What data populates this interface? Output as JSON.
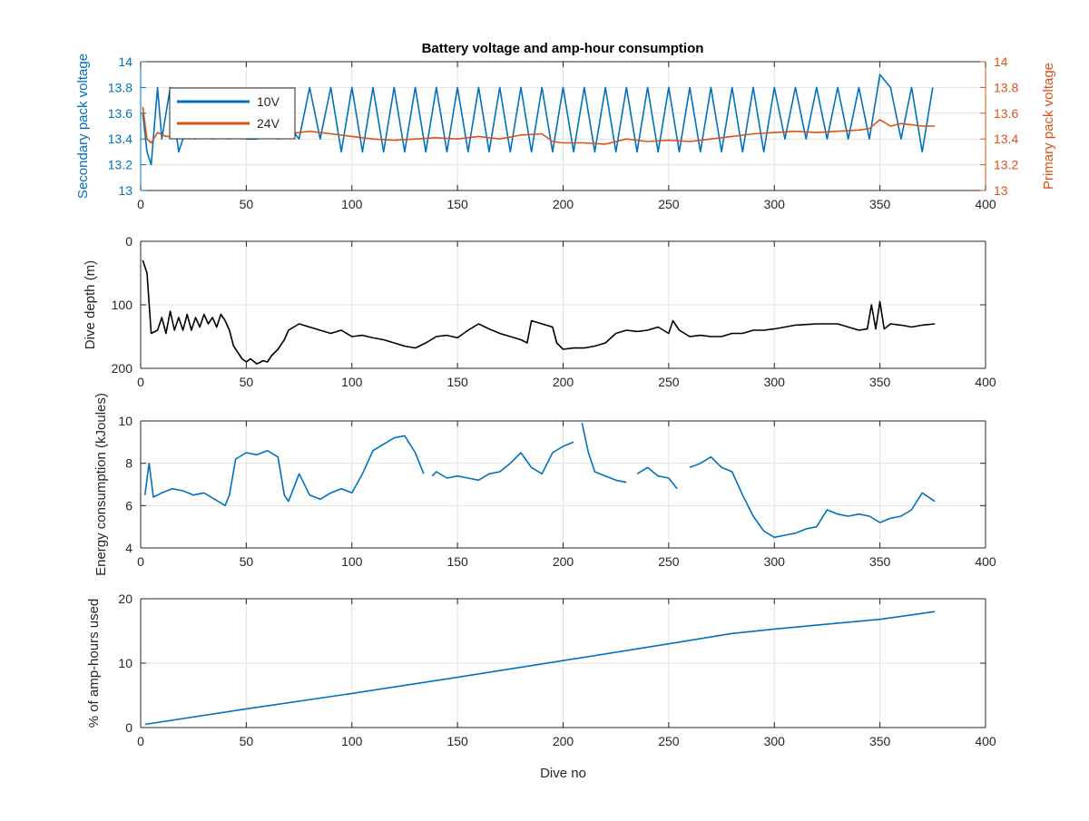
{
  "figure": {
    "title": "Battery voltage and amp-hour consumption"
  },
  "chart_data": [
    {
      "type": "line",
      "title": "Battery voltage and amp-hour consumption",
      "xlabel": "",
      "ylabel": "Secondary pack voltage",
      "ylabel_right": "Primary pack voltage",
      "xlim": [
        0,
        400
      ],
      "ylim": [
        13,
        14
      ],
      "ylim_right": [
        13,
        14
      ],
      "xticks": [
        "0",
        "50",
        "100",
        "150",
        "200",
        "250",
        "300",
        "350",
        "400"
      ],
      "yticks": [
        "13",
        "13.2",
        "13.4",
        "13.6",
        "13.8",
        "14"
      ],
      "yticks_right": [
        "13",
        "13.2",
        "13.4",
        "13.6",
        "13.8",
        "14"
      ],
      "grid": true,
      "legend": "top-left",
      "colors": {
        "left_axis": "#0072BD",
        "right_axis": "#D95319"
      },
      "series": [
        {
          "name": "10V",
          "color": "#0072BD",
          "axis": "left",
          "x": [
            1,
            3,
            5,
            8,
            10,
            14,
            18,
            22,
            26,
            30,
            34,
            38,
            42,
            46,
            50,
            55,
            60,
            65,
            70,
            75,
            80,
            85,
            90,
            95,
            100,
            105,
            110,
            115,
            120,
            125,
            130,
            135,
            140,
            145,
            150,
            155,
            160,
            165,
            170,
            175,
            180,
            185,
            190,
            195,
            200,
            205,
            210,
            215,
            220,
            225,
            230,
            235,
            240,
            245,
            250,
            255,
            260,
            265,
            270,
            275,
            280,
            285,
            290,
            295,
            300,
            305,
            310,
            315,
            320,
            325,
            330,
            335,
            340,
            345,
            350,
            355,
            360,
            365,
            370,
            375
          ],
          "y": [
            13.6,
            13.3,
            13.2,
            13.8,
            13.4,
            13.8,
            13.3,
            13.5,
            13.4,
            13.5,
            13.4,
            13.5,
            13.4,
            13.5,
            13.4,
            13.4,
            13.5,
            13.4,
            13.5,
            13.4,
            13.8,
            13.4,
            13.8,
            13.3,
            13.8,
            13.3,
            13.8,
            13.3,
            13.8,
            13.3,
            13.8,
            13.3,
            13.8,
            13.3,
            13.8,
            13.3,
            13.8,
            13.3,
            13.8,
            13.3,
            13.8,
            13.3,
            13.8,
            13.3,
            13.8,
            13.3,
            13.8,
            13.3,
            13.8,
            13.3,
            13.8,
            13.3,
            13.8,
            13.3,
            13.8,
            13.3,
            13.8,
            13.3,
            13.8,
            13.3,
            13.8,
            13.3,
            13.8,
            13.3,
            13.8,
            13.4,
            13.8,
            13.4,
            13.8,
            13.4,
            13.8,
            13.4,
            13.8,
            13.4,
            13.9,
            13.8,
            13.4,
            13.8,
            13.3,
            13.8
          ]
        },
        {
          "name": "24V",
          "color": "#D95319",
          "axis": "right",
          "x": [
            1,
            3,
            5,
            8,
            12,
            20,
            30,
            40,
            50,
            60,
            70,
            80,
            90,
            100,
            110,
            120,
            130,
            140,
            150,
            160,
            170,
            180,
            190,
            195,
            200,
            210,
            220,
            230,
            240,
            250,
            260,
            270,
            280,
            290,
            300,
            310,
            320,
            330,
            340,
            345,
            350,
            355,
            360,
            370,
            376
          ],
          "y": [
            13.65,
            13.4,
            13.37,
            13.45,
            13.42,
            13.42,
            13.41,
            13.43,
            13.42,
            13.43,
            13.44,
            13.46,
            13.44,
            13.42,
            13.4,
            13.39,
            13.4,
            13.41,
            13.4,
            13.42,
            13.4,
            13.43,
            13.44,
            13.38,
            13.37,
            13.37,
            13.36,
            13.4,
            13.38,
            13.39,
            13.38,
            13.4,
            13.42,
            13.44,
            13.45,
            13.46,
            13.45,
            13.46,
            13.47,
            13.48,
            13.55,
            13.5,
            13.52,
            13.5,
            13.5
          ]
        }
      ]
    },
    {
      "type": "line",
      "title": "",
      "xlabel": "",
      "ylabel": "Dive depth (m)",
      "xlim": [
        0,
        400
      ],
      "ylim": [
        0,
        200
      ],
      "yreverse": true,
      "xticks": [
        "0",
        "50",
        "100",
        "150",
        "200",
        "250",
        "300",
        "350",
        "400"
      ],
      "yticks": [
        "0",
        "100",
        "200"
      ],
      "grid": true,
      "series": [
        {
          "color": "#000000",
          "x": [
            1,
            3,
            5,
            8,
            10,
            12,
            14,
            16,
            18,
            20,
            22,
            24,
            26,
            28,
            30,
            32,
            34,
            36,
            38,
            40,
            42,
            44,
            46,
            48,
            50,
            52,
            55,
            58,
            60,
            62,
            65,
            68,
            70,
            75,
            80,
            85,
            90,
            95,
            100,
            105,
            110,
            115,
            120,
            125,
            130,
            135,
            140,
            145,
            150,
            155,
            160,
            165,
            170,
            175,
            180,
            183,
            185,
            190,
            195,
            197,
            200,
            205,
            210,
            215,
            220,
            225,
            230,
            235,
            240,
            245,
            250,
            252,
            255,
            260,
            265,
            270,
            275,
            280,
            285,
            290,
            295,
            300,
            305,
            310,
            320,
            330,
            340,
            344,
            346,
            348,
            350,
            352,
            355,
            360,
            365,
            370,
            376
          ],
          "y": [
            30,
            50,
            145,
            140,
            120,
            145,
            110,
            140,
            120,
            140,
            115,
            140,
            120,
            135,
            115,
            130,
            120,
            135,
            115,
            125,
            140,
            165,
            175,
            185,
            190,
            185,
            193,
            188,
            190,
            180,
            170,
            155,
            140,
            130,
            135,
            140,
            145,
            140,
            150,
            148,
            152,
            155,
            160,
            165,
            168,
            160,
            150,
            148,
            152,
            140,
            130,
            138,
            145,
            150,
            155,
            160,
            125,
            130,
            135,
            160,
            170,
            168,
            168,
            165,
            160,
            145,
            140,
            142,
            140,
            135,
            145,
            125,
            140,
            150,
            148,
            150,
            150,
            145,
            145,
            140,
            140,
            138,
            135,
            132,
            130,
            130,
            140,
            138,
            100,
            138,
            95,
            138,
            130,
            132,
            135,
            132,
            130
          ]
        }
      ]
    },
    {
      "type": "line",
      "title": "",
      "xlabel": "",
      "ylabel": "Energy consumption (kJoules)",
      "xlim": [
        0,
        400
      ],
      "ylim": [
        4,
        10
      ],
      "xticks": [
        "0",
        "50",
        "100",
        "150",
        "200",
        "250",
        "300",
        "350",
        "400"
      ],
      "yticks": [
        "4",
        "6",
        "8",
        "10"
      ],
      "grid": true,
      "series": [
        {
          "color": "#0072BD",
          "x": [
            2,
            4,
            6,
            10,
            15,
            20,
            25,
            30,
            35,
            40,
            42,
            45,
            50,
            55,
            60,
            65,
            68,
            70,
            75,
            80,
            85,
            90,
            95,
            100,
            105,
            110,
            115,
            120,
            125,
            130,
            134,
            null,
            138,
            140,
            145,
            150,
            155,
            160,
            165,
            170,
            175,
            180,
            185,
            190,
            195,
            200,
            205,
            null,
            209,
            212,
            215,
            220,
            225,
            230,
            null,
            235,
            240,
            245,
            250,
            254,
            null,
            260,
            265,
            270,
            275,
            280,
            285,
            290,
            295,
            300,
            305,
            310,
            315,
            320,
            325,
            330,
            335,
            340,
            345,
            350,
            355,
            360,
            365,
            370,
            376
          ],
          "y": [
            6.5,
            8.0,
            6.4,
            6.6,
            6.8,
            6.7,
            6.5,
            6.6,
            6.3,
            6.0,
            6.5,
            8.2,
            8.5,
            8.4,
            8.6,
            8.3,
            6.5,
            6.2,
            7.5,
            6.5,
            6.3,
            6.6,
            6.8,
            6.6,
            7.5,
            8.6,
            8.9,
            9.2,
            9.3,
            8.5,
            7.5,
            null,
            7.4,
            7.6,
            7.3,
            7.4,
            7.3,
            7.2,
            7.5,
            7.6,
            8.0,
            8.5,
            7.8,
            7.5,
            8.5,
            8.8,
            9.0,
            null,
            9.9,
            8.5,
            7.6,
            7.4,
            7.2,
            7.1,
            null,
            7.5,
            7.8,
            7.4,
            7.3,
            6.8,
            null,
            7.8,
            8.0,
            8.3,
            7.8,
            7.6,
            6.5,
            5.5,
            4.8,
            4.5,
            4.6,
            4.7,
            4.9,
            5.0,
            5.8,
            5.6,
            5.5,
            5.6,
            5.5,
            5.2,
            5.4,
            5.5,
            5.8,
            6.6,
            6.2
          ]
        }
      ]
    },
    {
      "type": "line",
      "title": "",
      "xlabel": "Dive no",
      "ylabel": "% of amp-hours used",
      "xlim": [
        0,
        400
      ],
      "ylim": [
        0,
        20
      ],
      "xticks": [
        "0",
        "50",
        "100",
        "150",
        "200",
        "250",
        "300",
        "350",
        "400"
      ],
      "yticks": [
        "0",
        "10",
        "20"
      ],
      "grid": true,
      "series": [
        {
          "color": "#0072BD",
          "x": [
            2,
            50,
            100,
            150,
            200,
            250,
            280,
            300,
            350,
            376
          ],
          "y": [
            0.5,
            2.9,
            5.3,
            7.8,
            10.4,
            13.0,
            14.6,
            15.3,
            16.8,
            18.0
          ]
        }
      ]
    }
  ]
}
